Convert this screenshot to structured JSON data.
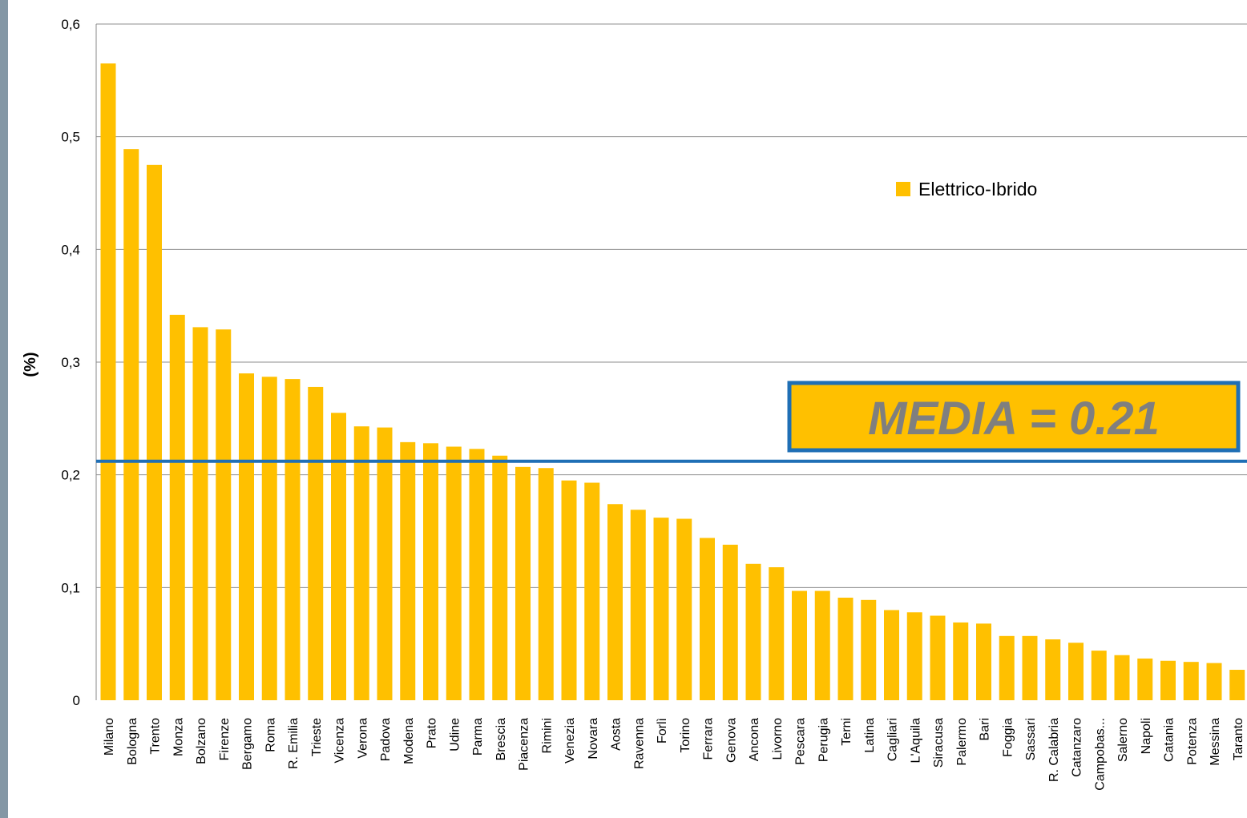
{
  "chart_data": {
    "type": "bar",
    "ylabel": "(%)",
    "xlabel": "",
    "ylim": [
      0,
      0.6
    ],
    "yticks": [
      "0",
      "0,1",
      "0,2",
      "0,3",
      "0,4",
      "0,5",
      "0,6"
    ],
    "ytick_values": [
      0,
      0.1,
      0.2,
      0.3,
      0.4,
      0.5,
      0.6
    ],
    "grid": true,
    "legend": {
      "position": "top-right",
      "label": "Elettrico-Ibrido",
      "color": "#ffc000"
    },
    "bar_color": "#ffc000",
    "mean": {
      "value": 0.212,
      "label": "MEDIA = 0.21",
      "line_color": "#1f6fb5",
      "box_fill": "#ffc000",
      "box_border": "#1f6fb5",
      "text_color": "#7f7f7f"
    },
    "categories": [
      "Milano",
      "Bologna",
      "Trento",
      "Monza",
      "Bolzano",
      "Firenze",
      "Bergamo",
      "Roma",
      "R. Emilia",
      "Trieste",
      "Vicenza",
      "Verona",
      "Padova",
      "Modena",
      "Prato",
      "Udine",
      "Parma",
      "Brescia",
      "Piacenza",
      "Rimini",
      "Venezia",
      "Novara",
      "Aosta",
      "Ravenna",
      "Forlì",
      "Torino",
      "Ferrara",
      "Genova",
      "Ancona",
      "Livorno",
      "Pescara",
      "Perugia",
      "Terni",
      "Latina",
      "Cagliari",
      "L'Aquila",
      "Siracusa",
      "Palermo",
      "Bari",
      "Foggia",
      "Sassari",
      "R. Calabria",
      "Catanzaro",
      "Campobas...",
      "Salerno",
      "Napoli",
      "Catania",
      "Potenza",
      "Messina",
      "Taranto"
    ],
    "values": [
      0.565,
      0.489,
      0.475,
      0.342,
      0.331,
      0.329,
      0.29,
      0.287,
      0.285,
      0.278,
      0.255,
      0.243,
      0.242,
      0.229,
      0.228,
      0.225,
      0.223,
      0.217,
      0.207,
      0.206,
      0.195,
      0.193,
      0.174,
      0.169,
      0.162,
      0.161,
      0.144,
      0.138,
      0.121,
      0.118,
      0.097,
      0.097,
      0.091,
      0.089,
      0.08,
      0.078,
      0.075,
      0.069,
      0.068,
      0.057,
      0.057,
      0.054,
      0.051,
      0.044,
      0.04,
      0.037,
      0.035,
      0.034,
      0.033,
      0.027
    ]
  }
}
